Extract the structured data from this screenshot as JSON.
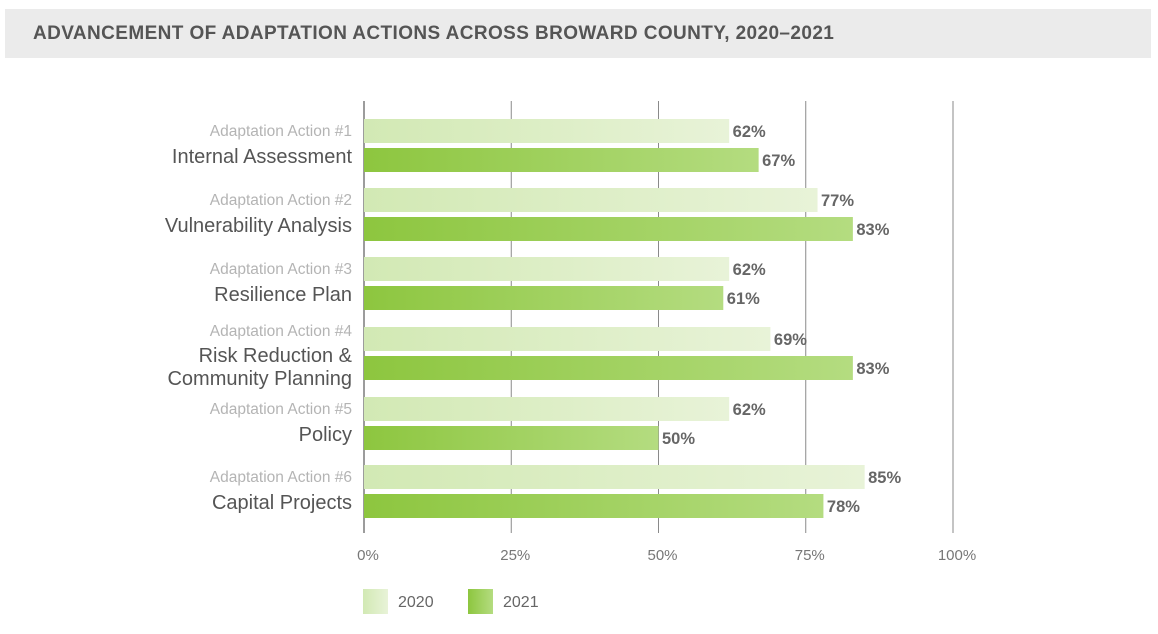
{
  "header": {
    "title": "ADVANCEMENT OF ADAPTATION ACTIONS ACROSS BROWARD COUNTY, 2020–2021"
  },
  "chart_data": {
    "type": "bar",
    "orientation": "horizontal",
    "title": "ADVANCEMENT OF ADAPTATION ACTIONS ACROSS BROWARD COUNTY, 2020–2021",
    "categories": [
      {
        "sublabel": "Adaptation Action #1",
        "label": [
          "Internal Assessment"
        ]
      },
      {
        "sublabel": "Adaptation Action #2",
        "label": [
          "Vulnerability Analysis"
        ]
      },
      {
        "sublabel": "Adaptation Action #3",
        "label": [
          "Resilience Plan"
        ]
      },
      {
        "sublabel": "Adaptation Action #4",
        "label": [
          "Risk Reduction &",
          "Community Planning"
        ]
      },
      {
        "sublabel": "Adaptation Action #5",
        "label": [
          "Policy"
        ]
      },
      {
        "sublabel": "Adaptation Action #6",
        "label": [
          "Capital Projects"
        ]
      }
    ],
    "series": [
      {
        "name": "2020",
        "values": [
          62,
          77,
          62,
          69,
          62,
          85
        ],
        "labels": [
          "62%",
          "77%",
          "62%",
          "69%",
          "62%",
          "85%"
        ],
        "color_light": "#e8f3d8",
        "color_dark": "#d2e9b4"
      },
      {
        "name": "2021",
        "values": [
          67,
          83,
          61,
          83,
          50,
          78
        ],
        "labels": [
          "67%",
          "83%",
          "61%",
          "83%",
          "50%",
          "78%"
        ],
        "color_light": "#a9d66f",
        "color_dark": "#8dc63f"
      }
    ],
    "xlim": [
      0,
      100
    ],
    "xticks": [
      0,
      25,
      50,
      75,
      100
    ],
    "xtick_labels": [
      "0%",
      "25%",
      "50%",
      "75%",
      "100%"
    ],
    "grid": true,
    "legend_position": "bottom-left"
  }
}
